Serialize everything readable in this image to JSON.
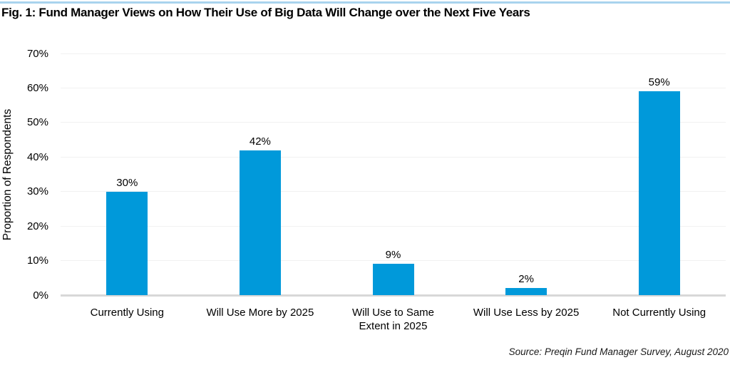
{
  "page": {
    "accent_rule_color": "#a9d3ee"
  },
  "chart_data": {
    "type": "bar",
    "title": "Fig. 1: Fund Manager Views on How Their Use of Big Data Will Change over the Next Five Years",
    "categories": [
      "Currently Using",
      "Will Use More by 2025",
      "Will Use to Same Extent in 2025",
      "Will Use Less by 2025",
      "Not Currently Using"
    ],
    "category_lines": [
      [
        "Currently Using"
      ],
      [
        "Will Use More by 2025"
      ],
      [
        "Will Use to Same",
        "Extent in 2025"
      ],
      [
        "Will Use Less by 2025"
      ],
      [
        "Not Currently Using"
      ]
    ],
    "values": [
      30,
      42,
      9,
      2,
      59
    ],
    "value_labels": [
      "30%",
      "42%",
      "9%",
      "2%",
      "59%"
    ],
    "xlabel": "",
    "ylabel": "Proportion of Respondents",
    "ylim": [
      0,
      70
    ],
    "ytick_step": 10,
    "ytick_labels": [
      "0%",
      "10%",
      "20%",
      "30%",
      "40%",
      "50%",
      "60%",
      "70%"
    ],
    "grid": "horizontal",
    "legend": "none",
    "bar_color": "#0099da",
    "source": "Source: Preqin Fund Manager Survey, August 2020"
  }
}
